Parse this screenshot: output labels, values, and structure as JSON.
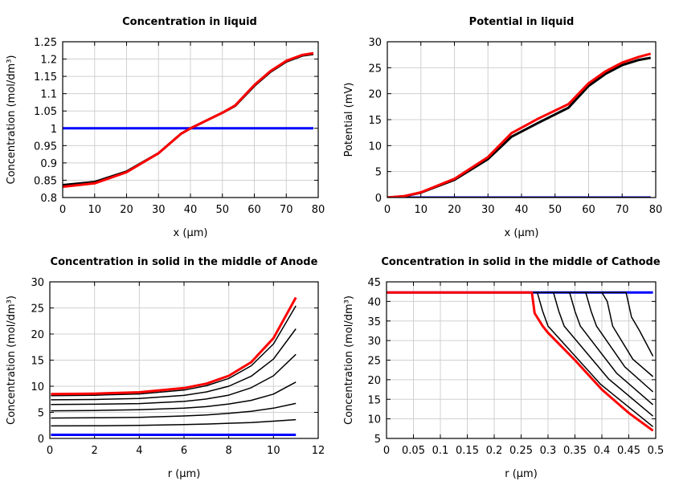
{
  "chart_data": [
    {
      "type": "line",
      "title": "Concentration in liquid",
      "xlabel": "x (µm)",
      "ylabel": "Concentration (mol/dm³)",
      "xlim": [
        0,
        80
      ],
      "ylim": [
        0.8,
        1.25
      ],
      "xticks": [
        "0",
        "10",
        "20",
        "30",
        "40",
        "50",
        "60",
        "70",
        "80"
      ],
      "yticks": [
        "0.8",
        "0.85",
        "0.9",
        "0.95",
        "1",
        "1.05",
        "1.1",
        "1.15",
        "1.2",
        "1.25"
      ],
      "grid": true,
      "series": [
        {
          "color": "#0000ff",
          "width": 3,
          "x": [
            0,
            78.5
          ],
          "y": [
            1.0,
            1.0
          ]
        },
        {
          "color": "#000000",
          "width": 3,
          "x": [
            0,
            10,
            20,
            30,
            37,
            40,
            50,
            54,
            60,
            65,
            70,
            75,
            78.5
          ],
          "y": [
            0.836,
            0.845,
            0.875,
            0.928,
            0.984,
            1.0,
            1.045,
            1.065,
            1.123,
            1.163,
            1.193,
            1.21,
            1.215
          ]
        },
        {
          "color": "#ff0000",
          "width": 3,
          "x": [
            0,
            10,
            20,
            30,
            37,
            40,
            50,
            54,
            60,
            65,
            70,
            75,
            78.5
          ],
          "y": [
            0.831,
            0.841,
            0.873,
            0.928,
            0.984,
            1.0,
            1.045,
            1.066,
            1.125,
            1.165,
            1.195,
            1.212,
            1.217
          ]
        }
      ]
    },
    {
      "type": "line",
      "title": "Potential in liquid",
      "xlabel": "x (µm)",
      "ylabel": "Potential (mV)",
      "xlim": [
        0,
        80
      ],
      "ylim": [
        0,
        30
      ],
      "xticks": [
        "0",
        "10",
        "20",
        "30",
        "40",
        "50",
        "60",
        "70",
        "80"
      ],
      "yticks": [
        "0",
        "5",
        "10",
        "15",
        "20",
        "25",
        "30"
      ],
      "grid": true,
      "series": [
        {
          "color": "#0000ff",
          "width": 3,
          "x": [
            0,
            78.5
          ],
          "y": [
            0,
            0
          ]
        },
        {
          "color": "#000000",
          "width": 2,
          "x": [
            0,
            78.5
          ],
          "y": [
            0,
            0
          ]
        },
        {
          "color": "#000000",
          "width": 3,
          "x": [
            0,
            5,
            10,
            20,
            30,
            37,
            45,
            54,
            60,
            65,
            70,
            75,
            78.5
          ],
          "y": [
            0,
            0.25,
            0.95,
            3.4,
            7.4,
            11.7,
            14.4,
            17.3,
            21.5,
            23.8,
            25.5,
            26.5,
            26.9
          ]
        },
        {
          "color": "#ff0000",
          "width": 3,
          "x": [
            0,
            5,
            10,
            20,
            30,
            37,
            45,
            54,
            60,
            65,
            70,
            75,
            78.5
          ],
          "y": [
            0,
            0.27,
            1.0,
            3.6,
            7.8,
            12.4,
            15.2,
            18.0,
            22.0,
            24.3,
            26.0,
            27.1,
            27.7
          ]
        }
      ]
    },
    {
      "type": "line",
      "title": "Concentration in solid in the middle of Anode",
      "xlabel": "r (µm)",
      "ylabel": "Concentration (mol/dm³)",
      "xlim": [
        0,
        12
      ],
      "ylim": [
        0,
        30
      ],
      "xticks": [
        "0",
        "2",
        "4",
        "6",
        "8",
        "10",
        "12"
      ],
      "yticks": [
        "0",
        "5",
        "10",
        "15",
        "20",
        "25",
        "30"
      ],
      "grid": true,
      "series": [
        {
          "color": "#0000ff",
          "width": 3,
          "x": [
            0.05,
            11
          ],
          "y": [
            0.7,
            0.7
          ]
        },
        {
          "color": "#000000",
          "width": 1.5,
          "x": [
            0.05,
            2,
            4,
            6,
            7,
            8,
            9,
            10,
            11
          ],
          "y": [
            2.4,
            2.42,
            2.5,
            2.65,
            2.75,
            2.9,
            3.05,
            3.3,
            3.6
          ]
        },
        {
          "color": "#000000",
          "width": 1.5,
          "x": [
            0.05,
            2,
            4,
            6,
            7,
            8,
            9,
            10,
            11
          ],
          "y": [
            3.9,
            3.95,
            4.05,
            4.3,
            4.5,
            4.8,
            5.2,
            5.8,
            6.7
          ]
        },
        {
          "color": "#000000",
          "width": 1.5,
          "x": [
            0.05,
            2,
            4,
            6,
            7,
            8,
            9,
            10,
            11
          ],
          "y": [
            5.3,
            5.35,
            5.5,
            5.8,
            6.1,
            6.6,
            7.3,
            8.5,
            10.8
          ]
        },
        {
          "color": "#000000",
          "width": 1.5,
          "x": [
            0.05,
            2,
            4,
            6,
            7,
            8,
            9,
            10,
            11
          ],
          "y": [
            6.5,
            6.55,
            6.68,
            7.09,
            7.55,
            8.3,
            9.7,
            12.0,
            16.1
          ]
        },
        {
          "color": "#000000",
          "width": 1.5,
          "x": [
            0.05,
            2,
            4,
            6,
            7,
            8,
            9,
            10,
            11
          ],
          "y": [
            7.4,
            7.46,
            7.66,
            8.24,
            8.9,
            10.0,
            11.9,
            15.2,
            21.0
          ]
        },
        {
          "color": "#000000",
          "width": 1.5,
          "x": [
            0.05,
            2,
            4,
            6,
            7,
            8,
            9,
            10,
            11
          ],
          "y": [
            8.2,
            8.28,
            8.53,
            9.26,
            10.1,
            11.5,
            13.9,
            18.1,
            25.4
          ]
        },
        {
          "color": "#ff0000",
          "width": 3,
          "x": [
            0.05,
            2,
            4,
            6,
            7,
            8,
            9,
            10,
            11
          ],
          "y": [
            8.5,
            8.59,
            8.85,
            9.64,
            10.5,
            12.0,
            14.6,
            19.2,
            27.0
          ]
        }
      ]
    },
    {
      "type": "line",
      "title": "Concentration in solid in the middle of Cathode",
      "xlabel": "r (µm)",
      "ylabel": "Concentration (mol/dm³)",
      "xlim": [
        0,
        0.5
      ],
      "ylim": [
        5,
        45
      ],
      "xticks": [
        "0",
        "0.05",
        "0.1",
        "0.15",
        "0.2",
        "0.25",
        "0.3",
        "0.35",
        "0.4",
        "0.45",
        "0.5"
      ],
      "yticks": [
        "5",
        "10",
        "15",
        "20",
        "25",
        "30",
        "35",
        "40",
        "45"
      ],
      "grid": true,
      "series": [
        {
          "color": "#0000ff",
          "width": 3,
          "x": [
            0,
            0.495
          ],
          "y": [
            42.3,
            42.3
          ]
        },
        {
          "color": "#000000",
          "width": 1.5,
          "x": [
            0.27,
            0.28,
            0.29,
            0.3,
            0.3975,
            0.495
          ],
          "y": [
            42.3,
            42.3,
            37.5,
            33.7,
            18.85,
            8.0
          ]
        },
        {
          "color": "#000000",
          "width": 1.5,
          "x": [
            0.27,
            0.31,
            0.32,
            0.33,
            0.4125,
            0.495
          ],
          "y": [
            42.3,
            42.3,
            37.5,
            33.7,
            20.2,
            10.7
          ]
        },
        {
          "color": "#000000",
          "width": 1.5,
          "x": [
            0.27,
            0.34,
            0.35,
            0.36,
            0.4275,
            0.495
          ],
          "y": [
            42.3,
            42.3,
            37.5,
            33.7,
            21.65,
            13.6
          ]
        },
        {
          "color": "#000000",
          "width": 1.5,
          "x": [
            0.27,
            0.37,
            0.38,
            0.39,
            0.4425,
            0.495
          ],
          "y": [
            42.3,
            42.3,
            37.5,
            33.7,
            23.3,
            16.9
          ]
        },
        {
          "color": "#000000",
          "width": 1.5,
          "x": [
            0.27,
            0.4,
            0.41,
            0.42,
            0.4575,
            0.495
          ],
          "y": [
            42.3,
            42.3,
            40.0,
            33.7,
            25.25,
            20.8
          ]
        },
        {
          "color": "#000000",
          "width": 1.5,
          "x": [
            0.27,
            0.445,
            0.455,
            0.47,
            0.495
          ],
          "y": [
            42.3,
            42.3,
            36.0,
            32.5,
            26.0
          ]
        },
        {
          "color": "#ff0000",
          "width": 3,
          "x": [
            0,
            0.27,
            0.275,
            0.29,
            0.3,
            0.35,
            0.4,
            0.45,
            0.495
          ],
          "y": [
            42.3,
            42.3,
            37.0,
            33.7,
            32.0,
            25.0,
            17.5,
            11.5,
            7.0
          ]
        }
      ]
    }
  ]
}
